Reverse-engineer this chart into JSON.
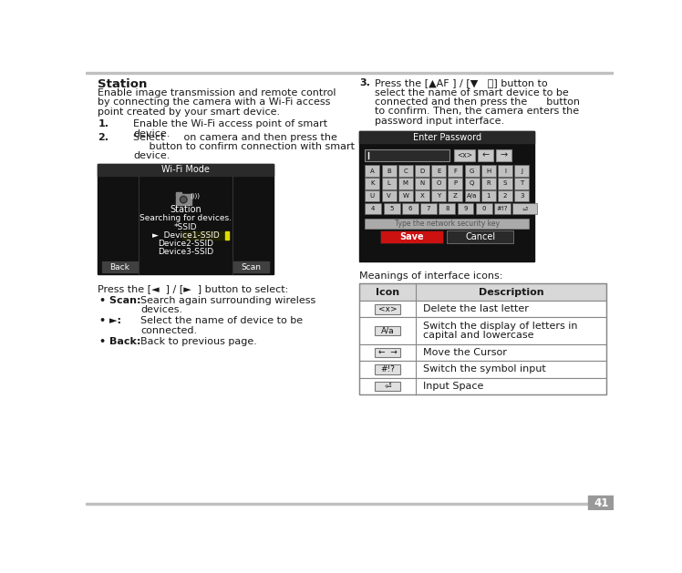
{
  "page_bg": "#ffffff",
  "page_number": "41",
  "page_number_bg": "#999999",
  "title": "Station",
  "text_color": "#1a1a1a",
  "intro_lines": [
    "Enable image transmission and remote control",
    "by connecting the camera with a Wi-Fi access",
    "point created by your smart device."
  ],
  "step1_lines": [
    "Enable the Wi-Fi access point of smart",
    "device."
  ],
  "step2_lines": [
    "Select      on camera and then press the",
    "     button to confirm connection with smart",
    "device."
  ],
  "step3_lines": [
    "Press the [▲AF ] / [▼   ⌛] button to",
    "select the name of smart device to be",
    "connected and then press the      button",
    "to confirm. Then, the camera enters the",
    "password input interface."
  ],
  "wifi_title": "Wi-Fi Mode",
  "wifi_items": [
    "Searching for devices.",
    "*SSID",
    "►  Device1-SSID",
    "Device2-SSID",
    "Device3-SSID"
  ],
  "wifi_back": "Back",
  "wifi_scan": "Scan",
  "press_line": "Press the [◄  ] / [►  ] button to select:",
  "bullets": [
    [
      "Scan:",
      "Search again surrounding wireless\ndevices."
    ],
    [
      "►:",
      "Select the name of device to be\nconnected."
    ],
    [
      "Back:",
      "Back to previous page."
    ]
  ],
  "pw_title": "Enter Password",
  "pw_hint": "Type the network security key",
  "keyboard": [
    [
      "A",
      "B",
      "C",
      "D",
      "E",
      "F",
      "G",
      "H",
      "I",
      "J"
    ],
    [
      "K",
      "L",
      "M",
      "N",
      "O",
      "P",
      "Q",
      "R",
      "S",
      "T"
    ],
    [
      "U",
      "V",
      "W",
      "X",
      "Y",
      "Z",
      "A/a",
      "1",
      "2",
      "3"
    ],
    [
      "4",
      "5",
      "6",
      "7",
      "8",
      "9",
      "0",
      "#!?",
      "⏎"
    ]
  ],
  "save_color": "#cc1111",
  "cancel_color": "#3a3a3a",
  "meanings_title": "Meanings of interface icons:",
  "tbl_icon_header": "Icon",
  "tbl_desc_header": "Description",
  "tbl_rows": [
    [
      "<x>",
      "Delete the last letter"
    ],
    [
      "A/a",
      "Switch the display of letters in\ncapital and lowercase"
    ],
    [
      "←  →",
      "Move the Cursor"
    ],
    [
      "#!?",
      "Switch the symbol input"
    ],
    [
      "⏎",
      "Input Space"
    ]
  ],
  "tbl_header_bg": "#d8d8d8",
  "tbl_border": "#888888",
  "wifi_bg": "#111111",
  "wifi_title_bg": "#2a2a2a",
  "pw_bg": "#111111",
  "pw_title_bg": "#282828",
  "key_bg": "#383838",
  "key_border": "#888888",
  "key_text": "#ffffff",
  "hint_bg": "#8a8a8a",
  "hint_text": "#444444"
}
